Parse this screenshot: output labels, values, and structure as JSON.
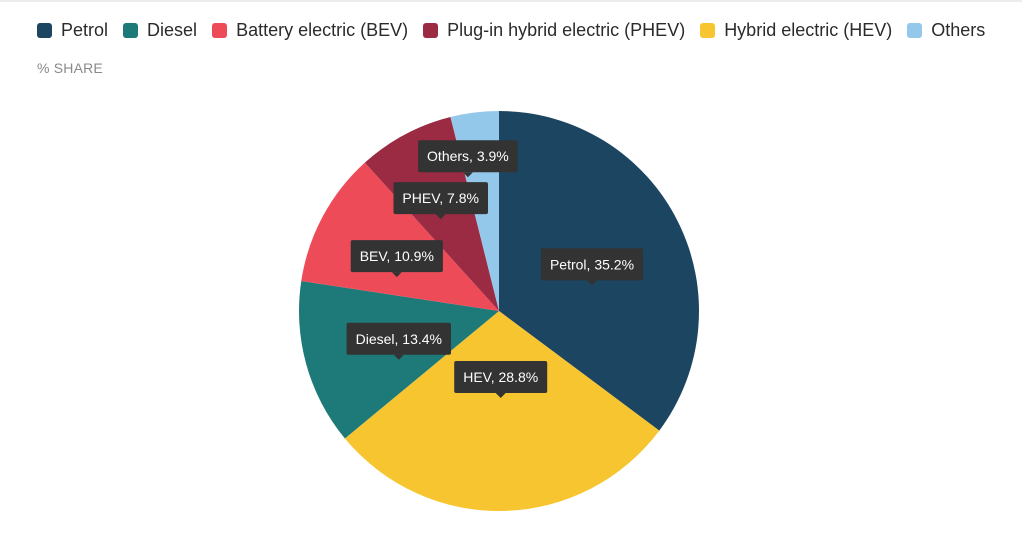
{
  "unit_label": "% SHARE",
  "legend": [
    {
      "label": "Petrol",
      "color": "#1c4562"
    },
    {
      "label": "Diesel",
      "color": "#1e7a78"
    },
    {
      "label": "Battery electric (BEV)",
      "color": "#ee4b58"
    },
    {
      "label": "Plug-in hybrid electric (PHEV)",
      "color": "#9a2b42"
    },
    {
      "label": "Hybrid electric (HEV)",
      "color": "#f7c52f"
    },
    {
      "label": "Others",
      "color": "#93c8ea"
    }
  ],
  "chart_data": {
    "type": "pie",
    "title": "",
    "unit": "% SHARE",
    "slices": [
      {
        "name": "Petrol",
        "value": 35.2,
        "color": "#1c4562",
        "label": "Petrol, 35.2%"
      },
      {
        "name": "HEV",
        "value": 28.8,
        "color": "#f7c52f",
        "label": "HEV, 28.8%"
      },
      {
        "name": "Diesel",
        "value": 13.4,
        "color": "#1e7a78",
        "label": "Diesel, 13.4%"
      },
      {
        "name": "BEV",
        "value": 10.9,
        "color": "#ee4b58",
        "label": "BEV, 10.9%"
      },
      {
        "name": "PHEV",
        "value": 7.8,
        "color": "#9a2b42",
        "label": "PHEV, 7.8%"
      },
      {
        "name": "Others",
        "value": 3.9,
        "color": "#93c8ea",
        "label": "Others, 3.9%"
      }
    ],
    "tooltip_bg": "#333333"
  }
}
